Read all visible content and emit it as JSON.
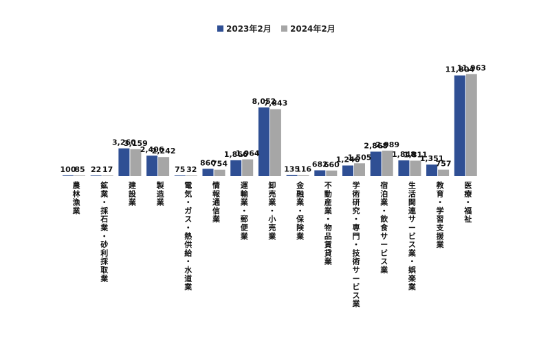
{
  "chart_data": {
    "type": "bar",
    "legend_position": "top-center",
    "grid": false,
    "colors": {
      "series_2023": "#2f4f94",
      "series_2024": "#a6a6a6"
    },
    "ylim": [
      0,
      12500
    ],
    "categories": [
      "農林漁業",
      "鉱業・採石業・砂利採取業",
      "建設業",
      "製造業",
      "電気・ガス・熱供給・水道業",
      "情報通信業",
      "運輸業・郵便業",
      "卸売業・小売業",
      "金融業・保険業",
      "不動産業・物品賃貸業",
      "学術研究・専門・技術サービス業",
      "宿泊業・飲食サービス業",
      "生活関連サービス業・娯楽業",
      "教育・学習支援業",
      "医療・福祉"
    ],
    "series": [
      {
        "name": "2023年2月",
        "values": [
          100,
          22,
          3260,
          2406,
          75,
          860,
          1866,
          8052,
          135,
          682,
          1246,
          2868,
          1848,
          1351,
          11804
        ],
        "labels": [
          "100",
          "22",
          "3,260",
          "2,406",
          "75",
          "860",
          "1,866",
          "8,052",
          "135",
          "682",
          "1,246",
          "2,868",
          "1,848",
          "1,351",
          "11,804"
        ]
      },
      {
        "name": "2024年2月",
        "values": [
          85,
          17,
          3159,
          2242,
          32,
          754,
          1964,
          7843,
          116,
          660,
          1505,
          2989,
          1811,
          757,
          11963
        ],
        "labels": [
          "85",
          "17",
          "3,159",
          "2,242",
          "32",
          "754",
          "1,964",
          "7,843",
          "116",
          "660",
          "1,505",
          "2,989",
          "1,811",
          "757",
          "11,963"
        ]
      }
    ]
  }
}
